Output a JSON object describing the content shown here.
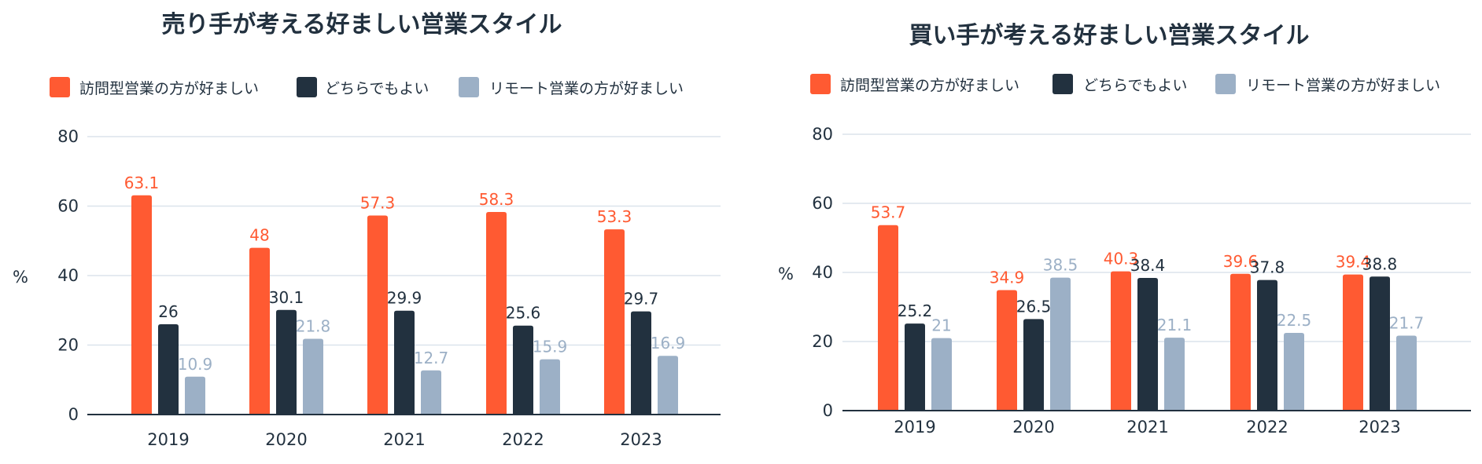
{
  "colors": {
    "visit": "#ff5a32",
    "either": "#22313f",
    "remote": "#9cb0c6",
    "grid": "#dbe4ec",
    "axis": "#22313f"
  },
  "chart_data": [
    {
      "type": "bar",
      "title": "売り手が考える好ましい営業スタイル",
      "ylabel": "%",
      "xlabel": "",
      "ylim": [
        0,
        80
      ],
      "yticks": [
        0,
        20,
        40,
        60,
        80
      ],
      "grid": true,
      "legend_position": "top-left",
      "categories": [
        "2019",
        "2020",
        "2021",
        "2022",
        "2023"
      ],
      "series": [
        {
          "name": "訪問型営業の方が好ましい",
          "key": "visit",
          "values": [
            63.1,
            48,
            57.3,
            58.3,
            53.3
          ],
          "labels": [
            "63.1",
            "48",
            "57.3",
            "58.3",
            "53.3"
          ]
        },
        {
          "name": "どちらでもよい",
          "key": "either",
          "values": [
            26,
            30.1,
            29.9,
            25.6,
            29.7
          ],
          "labels": [
            "26",
            "30.1",
            "29.9",
            "25.6",
            "29.7"
          ]
        },
        {
          "name": "リモート営業の方が好ましい",
          "key": "remote",
          "values": [
            10.9,
            21.8,
            12.7,
            15.9,
            16.9
          ],
          "labels": [
            "10.9",
            "21.8",
            "12.7",
            "15.9",
            "16.9"
          ]
        }
      ]
    },
    {
      "type": "bar",
      "title": "買い手が考える好ましい営業スタイル",
      "ylabel": "%",
      "xlabel": "",
      "ylim": [
        0,
        80
      ],
      "yticks": [
        0,
        20,
        40,
        60,
        80
      ],
      "grid": true,
      "legend_position": "top-left",
      "categories": [
        "2019",
        "2020",
        "2021",
        "2022",
        "2023"
      ],
      "series": [
        {
          "name": "訪問型営業の方が好ましい",
          "key": "visit",
          "values": [
            53.7,
            34.9,
            40.3,
            39.6,
            39.4
          ],
          "labels": [
            "53.7",
            "34.9",
            "40.3",
            "39.6",
            "39.4"
          ]
        },
        {
          "name": "どちらでもよい",
          "key": "either",
          "values": [
            25.2,
            26.5,
            38.4,
            37.8,
            38.8
          ],
          "labels": [
            "25.2",
            "26.5",
            "38.4",
            "37.8",
            "38.8"
          ]
        },
        {
          "name": "リモート営業の方が好ましい",
          "key": "remote",
          "values": [
            21,
            38.5,
            21.1,
            22.5,
            21.7
          ],
          "labels": [
            "21",
            "38.5",
            "21.1",
            "22.5",
            "21.7"
          ]
        }
      ]
    }
  ]
}
